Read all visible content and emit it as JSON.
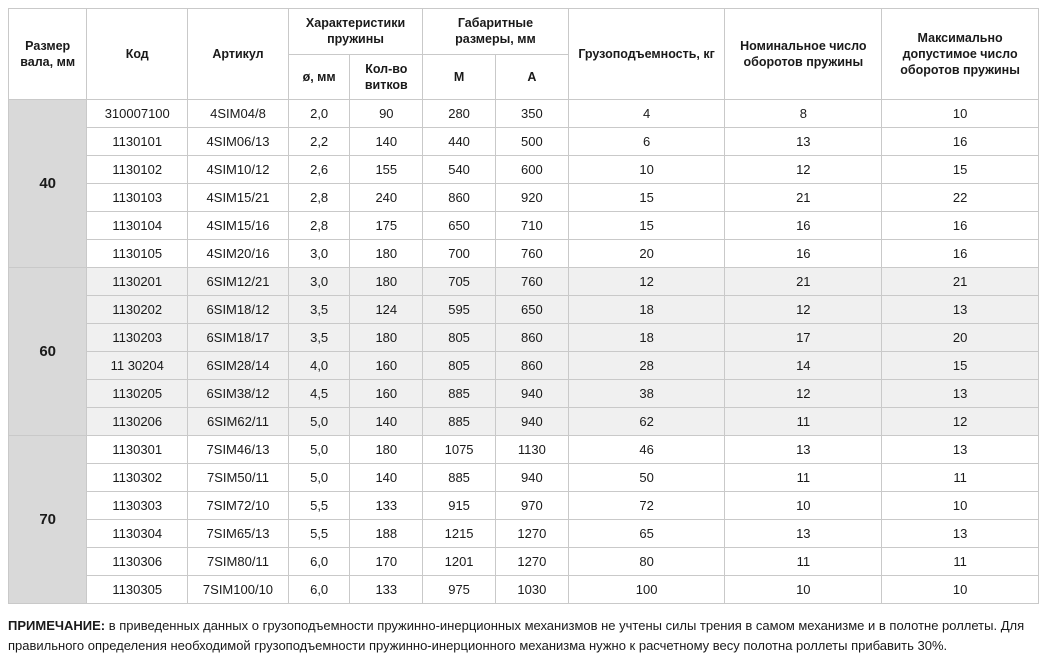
{
  "headers": {
    "shaft": "Размер вала, мм",
    "code": "Код",
    "article": "Артикул",
    "spring_group": "Характеристики пружины",
    "diameter": "ø, мм",
    "coils": "Кол-во витков",
    "dims_group": "Габаритные размеры, мм",
    "dim_m": "M",
    "dim_a": "A",
    "load": "Грузоподъемность, кг",
    "nominal": "Номинальное число оборотов пружины",
    "max": "Максимально допустимое число оборотов пружины"
  },
  "col_widths": [
    "70px",
    "90px",
    "90px",
    "55px",
    "65px",
    "65px",
    "65px",
    "140px",
    "140px",
    "140px"
  ],
  "groups": [
    {
      "shaft": "40",
      "shade": "even",
      "rows": [
        {
          "code": "310007100",
          "article": "4SIM04/8",
          "diameter": "2,0",
          "coils": "90",
          "m": "280",
          "a": "350",
          "load": "4",
          "nominal": "8",
          "max": "10"
        },
        {
          "code": "1130101",
          "article": "4SIM06/13",
          "diameter": "2,2",
          "coils": "140",
          "m": "440",
          "a": "500",
          "load": "6",
          "nominal": "13",
          "max": "16"
        },
        {
          "code": "1130102",
          "article": "4SIM10/12",
          "diameter": "2,6",
          "coils": "155",
          "m": "540",
          "a": "600",
          "load": "10",
          "nominal": "12",
          "max": "15"
        },
        {
          "code": "1130103",
          "article": "4SIM15/21",
          "diameter": "2,8",
          "coils": "240",
          "m": "860",
          "a": "920",
          "load": "15",
          "nominal": "21",
          "max": "22"
        },
        {
          "code": "1130104",
          "article": "4SIM15/16",
          "diameter": "2,8",
          "coils": "175",
          "m": "650",
          "a": "710",
          "load": "15",
          "nominal": "16",
          "max": "16"
        },
        {
          "code": "1130105",
          "article": "4SIM20/16",
          "diameter": "3,0",
          "coils": "180",
          "m": "700",
          "a": "760",
          "load": "20",
          "nominal": "16",
          "max": "16"
        }
      ]
    },
    {
      "shaft": "60",
      "shade": "odd",
      "rows": [
        {
          "code": "1130201",
          "article": "6SIM12/21",
          "diameter": "3,0",
          "coils": "180",
          "m": "705",
          "a": "760",
          "load": "12",
          "nominal": "21",
          "max": "21"
        },
        {
          "code": "1130202",
          "article": "6SIM18/12",
          "diameter": "3,5",
          "coils": "124",
          "m": "595",
          "a": "650",
          "load": "18",
          "nominal": "12",
          "max": "13"
        },
        {
          "code": "1130203",
          "article": "6SIM18/17",
          "diameter": "3,5",
          "coils": "180",
          "m": "805",
          "a": "860",
          "load": "18",
          "nominal": "17",
          "max": "20"
        },
        {
          "code": "11 30204",
          "article": "6SIM28/14",
          "diameter": "4,0",
          "coils": "160",
          "m": "805",
          "a": "860",
          "load": "28",
          "nominal": "14",
          "max": "15"
        },
        {
          "code": "1130205",
          "article": "6SIM38/12",
          "diameter": "4,5",
          "coils": "160",
          "m": "885",
          "a": "940",
          "load": "38",
          "nominal": "12",
          "max": "13"
        },
        {
          "code": "1130206",
          "article": "6SIM62/11",
          "diameter": "5,0",
          "coils": "140",
          "m": "885",
          "a": "940",
          "load": "62",
          "nominal": "11",
          "max": "12"
        }
      ]
    },
    {
      "shaft": "70",
      "shade": "even",
      "rows": [
        {
          "code": "1130301",
          "article": "7SIM46/13",
          "diameter": "5,0",
          "coils": "180",
          "m": "1075",
          "a": "1130",
          "load": "46",
          "nominal": "13",
          "max": "13"
        },
        {
          "code": "1130302",
          "article": "7SIM50/11",
          "diameter": "5,0",
          "coils": "140",
          "m": "885",
          "a": "940",
          "load": "50",
          "nominal": "11",
          "max": "11"
        },
        {
          "code": "1130303",
          "article": "7SIM72/10",
          "diameter": "5,5",
          "coils": "133",
          "m": "915",
          "a": "970",
          "load": "72",
          "nominal": "10",
          "max": "10"
        },
        {
          "code": "1130304",
          "article": "7SIM65/13",
          "diameter": "5,5",
          "coils": "188",
          "m": "1215",
          "a": "1270",
          "load": "65",
          "nominal": "13",
          "max": "13"
        },
        {
          "code": "1130306",
          "article": "7SIM80/11",
          "diameter": "6,0",
          "coils": "170",
          "m": "1201",
          "a": "1270",
          "load": "80",
          "nominal": "11",
          "max": "11"
        },
        {
          "code": "1130305",
          "article": "7SIM100/10",
          "diameter": "6,0",
          "coils": "133",
          "m": "975",
          "a": "1030",
          "load": "100",
          "nominal": "10",
          "max": "10"
        }
      ]
    }
  ],
  "note_label": "ПРИМЕЧАНИЕ:",
  "note_text": " в приведенных данных о грузоподъемности пружинно-инерционных механизмов не учтены силы трения в самом механизме и в полотне роллеты. Для правильного определения необходимой грузоподъемности пружинно-инерционного механизма нужно к расчетному весу полотна роллеты прибавить 30%.",
  "colors": {
    "border": "#c9c9c9",
    "shade_bg": "#f0f0f0",
    "shaft_bg": "#d9d9d9"
  }
}
